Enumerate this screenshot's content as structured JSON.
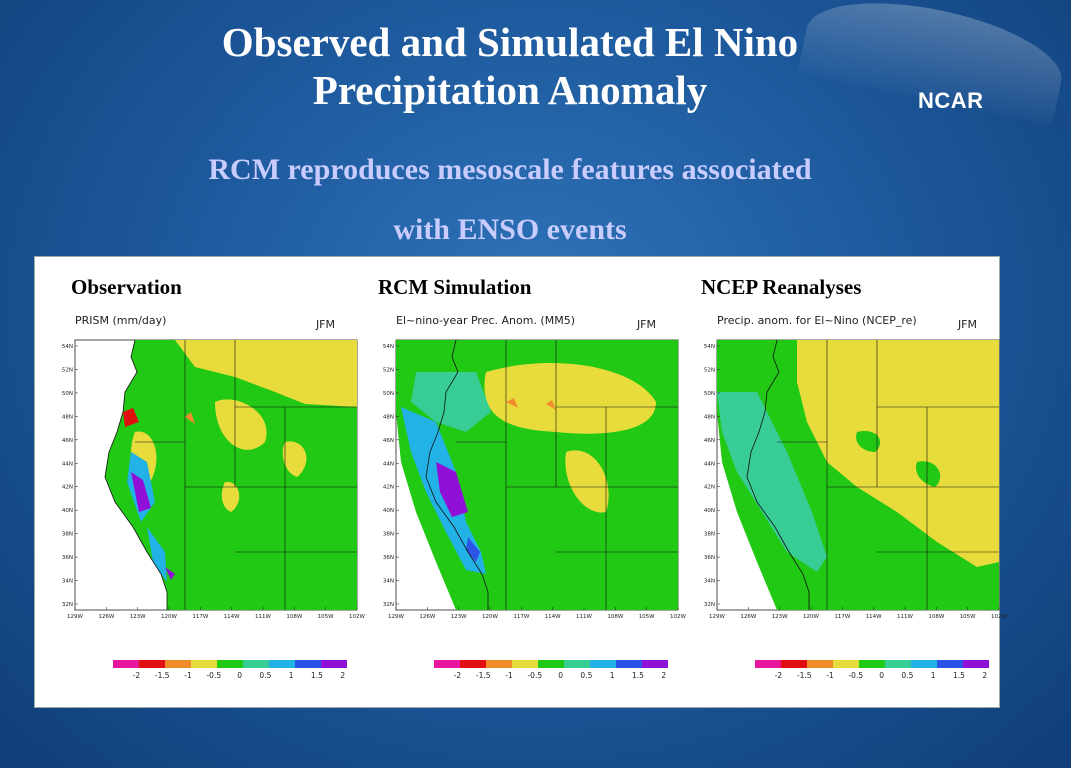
{
  "slide": {
    "title_line1": "Observed and Simulated El Nino",
    "title_line2": "Precipitation Anomaly",
    "subtitle_line1": "RCM reproduces mesoscale features associated",
    "subtitle_line2": "with ENSO events",
    "logo": "NCAR"
  },
  "panels": [
    {
      "heading": "Observation",
      "map_title": "PRISM   (mm/day)",
      "season": "JFM"
    },
    {
      "heading": "RCM Simulation",
      "map_title": "El~nino-year Prec. Anom.    (MM5)",
      "season": "JFM"
    },
    {
      "heading": "NCEP Reanalyses",
      "map_title": "Precip. anom. for El~Nino (NCEP_re)",
      "season": "JFM"
    }
  ],
  "lat_ticks": [
    "54N",
    "52N",
    "50N",
    "48N",
    "46N",
    "44N",
    "42N",
    "40N",
    "38N",
    "36N",
    "34N",
    "32N"
  ],
  "lon_ticks": [
    "129W",
    "126W",
    "123W",
    "120W",
    "117W",
    "114W",
    "111W",
    "108W",
    "105W",
    "102W"
  ],
  "colorbar": {
    "labels": [
      "-2",
      "-1.5",
      "-1",
      "-0.5",
      "0",
      "0.5",
      "1",
      "1.5",
      "2"
    ],
    "colors": [
      "#e8169a",
      "#e01010",
      "#f08c2c",
      "#e8dc3c",
      "#21c814",
      "#37cd94",
      "#23b2e6",
      "#2c52e6",
      "#9010d8"
    ]
  }
}
